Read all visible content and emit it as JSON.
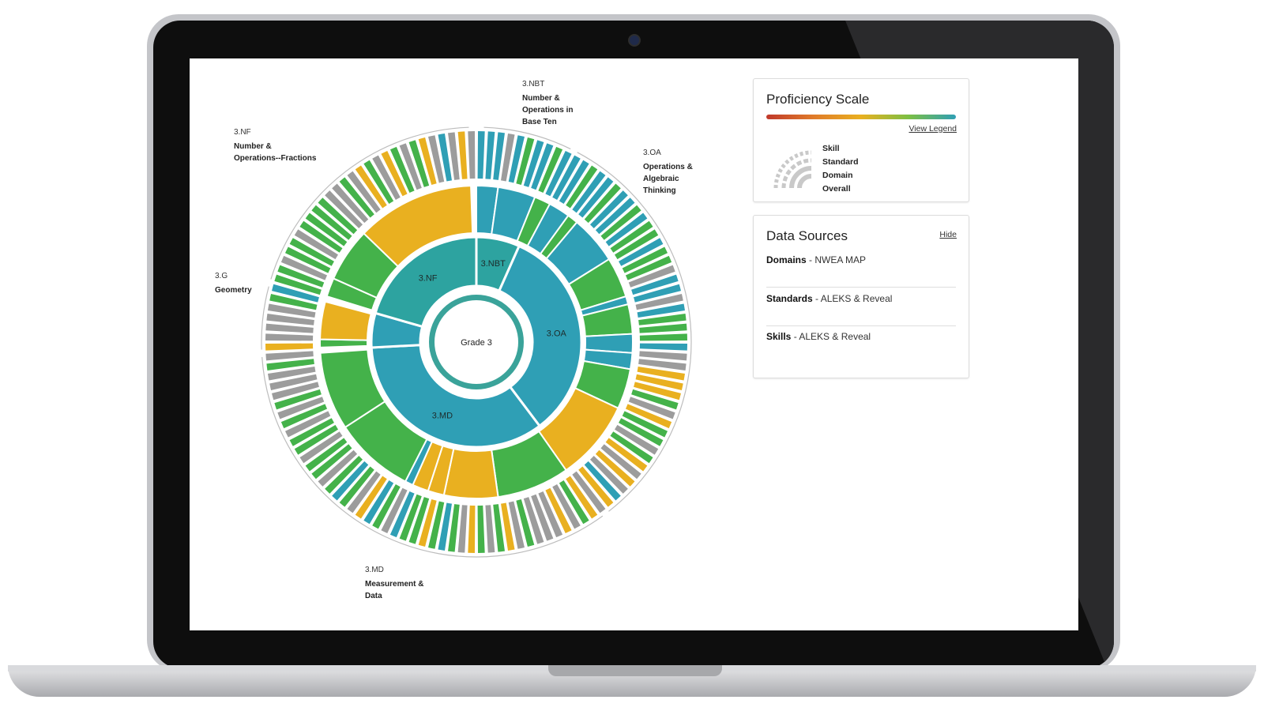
{
  "sunburst": {
    "center_label": "Grade 3",
    "colors": {
      "teal": "#2da3a0",
      "blue": "#2f9fb5",
      "green": "#44b24a",
      "yellow": "#e9b020",
      "gray": "#9c9c9c",
      "ring": "#3aa39a"
    },
    "categories": [
      {
        "code": "3.NBT",
        "name_lines": [
          "Number &",
          "Operations in",
          "Base Ten"
        ]
      },
      {
        "code": "3.OA",
        "name_lines": [
          "Operations &",
          "Algebraic",
          "Thinking"
        ]
      },
      {
        "code": "3.MD",
        "name_lines": [
          "Measurement &",
          "Data"
        ]
      },
      {
        "code": "3.G",
        "name_lines": [
          "Geometry"
        ]
      },
      {
        "code": "3.NF",
        "name_lines": [
          "Number &",
          "Operations--Fractions"
        ]
      }
    ],
    "domains": [
      {
        "label": "3.NBT",
        "start": 0,
        "end": 24,
        "color": "teal"
      },
      {
        "label": "3.OA",
        "start": 24,
        "end": 143,
        "color": "blue"
      },
      {
        "label": "3.MD",
        "start": 143,
        "end": 267,
        "color": "blue"
      },
      {
        "label": "",
        "start": 267,
        "end": 286,
        "color": "blue"
      },
      {
        "label": "3.NF",
        "start": 286,
        "end": 360,
        "color": "teal"
      }
    ],
    "standards": [
      {
        "start": 0,
        "end": 8,
        "color": "blue"
      },
      {
        "start": 8,
        "end": 22,
        "color": "blue"
      },
      {
        "start": 22,
        "end": 28,
        "color": "green"
      },
      {
        "start": 28,
        "end": 36,
        "color": "blue"
      },
      {
        "start": 36,
        "end": 40,
        "color": "green"
      },
      {
        "start": 40,
        "end": 58,
        "color": "blue"
      },
      {
        "start": 58,
        "end": 73,
        "color": "green"
      },
      {
        "start": 73,
        "end": 76,
        "color": "blue"
      },
      {
        "start": 76,
        "end": 87,
        "color": "green"
      },
      {
        "start": 87,
        "end": 94,
        "color": "blue"
      },
      {
        "start": 94,
        "end": 100,
        "color": "blue"
      },
      {
        "start": 100,
        "end": 115,
        "color": "green"
      },
      {
        "start": 115,
        "end": 145,
        "color": "yellow"
      },
      {
        "start": 145,
        "end": 172,
        "color": "green"
      },
      {
        "start": 172,
        "end": 192,
        "color": "yellow"
      },
      {
        "start": 192,
        "end": 198,
        "color": "yellow"
      },
      {
        "start": 198,
        "end": 204,
        "color": "yellow"
      },
      {
        "start": 204,
        "end": 207,
        "color": "blue"
      },
      {
        "start": 207,
        "end": 237,
        "color": "green"
      },
      {
        "start": 237,
        "end": 266,
        "color": "green"
      },
      {
        "start": 268,
        "end": 271,
        "color": "green"
      },
      {
        "start": 271,
        "end": 285,
        "color": "yellow"
      },
      {
        "start": 287,
        "end": 294,
        "color": "green"
      },
      {
        "start": 294,
        "end": 314,
        "color": "green"
      },
      {
        "start": 314,
        "end": 358,
        "color": "yellow"
      }
    ],
    "skills": [
      "blue",
      "blue",
      "blue",
      "gray",
      "blue",
      "green",
      "blue",
      "blue",
      "green",
      "blue",
      "blue",
      "blue",
      "green",
      "blue",
      "blue",
      "green",
      "blue",
      "blue",
      "green",
      "blue",
      "green",
      "green",
      "blue",
      "green",
      "green",
      "gray",
      "blue",
      "blue",
      "gray",
      "blue",
      "green",
      "green",
      "green",
      "blue",
      "gray",
      "gray",
      "yellow",
      "yellow",
      "yellow",
      "green",
      "gray",
      "yellow",
      "green",
      "green",
      "gray",
      "green",
      "yellow",
      "gray",
      "yellow",
      "gray",
      "blue",
      "yellow",
      "gray",
      "yellow",
      "green",
      "gray",
      "yellow",
      "gray",
      "gray",
      "gray",
      "green",
      "gray",
      "yellow",
      "green",
      "gray",
      "green",
      "yellow",
      "gray",
      "green",
      "blue",
      "green",
      "yellow",
      "green",
      "green",
      "blue",
      "gray",
      "green",
      "blue",
      "yellow",
      "gray",
      "green",
      "blue",
      "green",
      "gray",
      "green",
      "green",
      "gray",
      "green",
      "green",
      "gray",
      "green",
      "gray",
      "green",
      "gray",
      "gray",
      "gray",
      "green",
      "gray",
      "yellow",
      "gray",
      "gray",
      "gray",
      "gray",
      "green",
      "blue",
      "green",
      "green",
      "gray",
      "green",
      "green",
      "gray",
      "green",
      "green",
      "green",
      "green",
      "gray",
      "gray",
      "green",
      "gray",
      "yellow",
      "green",
      "gray",
      "yellow",
      "green",
      "gray",
      "green",
      "yellow",
      "gray",
      "blue",
      "gray",
      "yellow",
      "gray"
    ]
  },
  "proficiency": {
    "title": "Proficiency Scale",
    "view_legend": "View Legend",
    "gradient_colors": [
      "#c0392b",
      "#e07b2a",
      "#e9b020",
      "#7cbf44",
      "#2f9fb5"
    ],
    "legend_items": [
      "Skill",
      "Standard",
      "Domain",
      "Overall"
    ]
  },
  "data_sources": {
    "title": "Data Sources",
    "hide": "Hide",
    "items": [
      {
        "label": "Domains",
        "value": " - NWEA MAP"
      },
      {
        "label": "Standards",
        "value": " - ALEKS & Reveal"
      },
      {
        "label": "Skills",
        "value": " - ALEKS & Reveal"
      }
    ]
  }
}
